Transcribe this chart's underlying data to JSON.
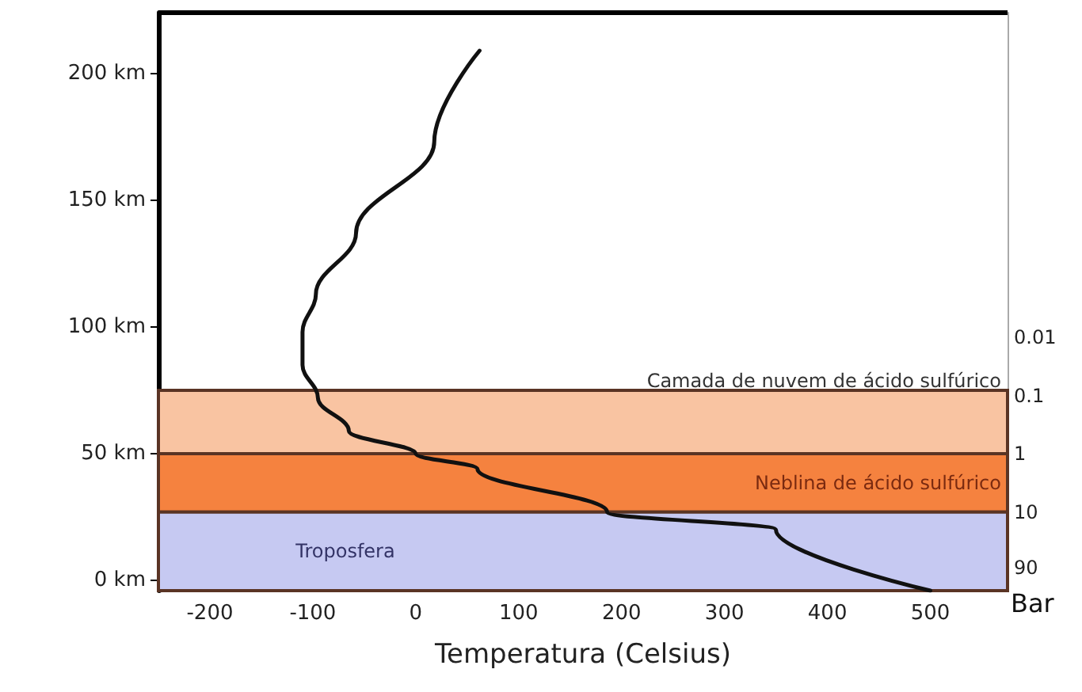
{
  "chart_data": {
    "type": "line",
    "xlabel": "Temperatura (Celsius)",
    "y2label": "Bar",
    "series": [
      {
        "color": "#111111",
        "x": [
          500,
          350,
          186,
          60,
          0,
          -65,
          -95,
          -110,
          -110,
          -97,
          -58,
          18,
          62
        ],
        "values": [
          -4,
          20,
          27,
          44,
          50,
          59,
          72,
          85,
          98,
          113,
          137,
          173,
          209
        ]
      }
    ],
    "xlim": [
      -250,
      575
    ],
    "xticks": [
      -200,
      -100,
      0,
      100,
      200,
      300,
      400,
      500
    ],
    "ylim": [
      -4,
      224
    ],
    "yticks": [
      {
        "value": 0,
        "label": "0 km"
      },
      {
        "value": 50,
        "label": "50 km"
      },
      {
        "value": 100,
        "label": "100 km"
      },
      {
        "value": 150,
        "label": "150 km"
      },
      {
        "value": 200,
        "label": "200 km"
      }
    ],
    "y2lim": [
      223,
      2.7e-08
    ],
    "y2ticks": [
      0.01,
      0.1,
      1,
      10,
      90
    ],
    "bands": [
      {
        "axis": "y",
        "from": 50,
        "to": 75,
        "label": "Camada de nuvem de ácido sulfúrico",
        "color": "#f9c4a2"
      },
      {
        "axis": "y",
        "from": 27,
        "to": 50,
        "label": "Neblina de ácido sulfúrico",
        "color": "#f5823f"
      },
      {
        "axis": "y",
        "from": -4,
        "to": 27,
        "label": "Troposfera",
        "color": "#c6c9f2"
      }
    ],
    "log": "y2",
    "grid": false,
    "marker": "none",
    "line_style": "solid"
  }
}
